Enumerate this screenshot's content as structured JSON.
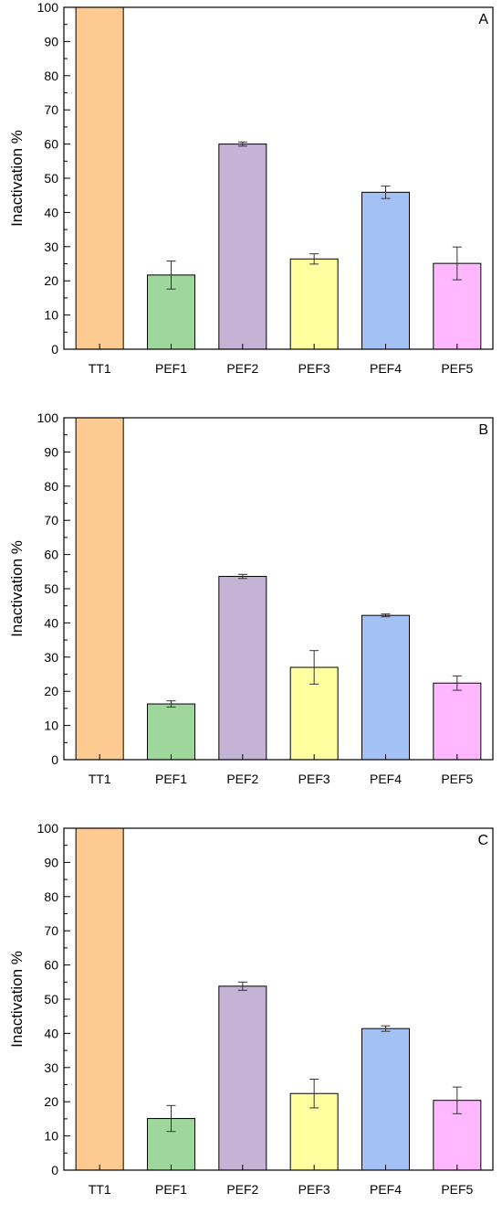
{
  "chart_data": [
    {
      "type": "bar",
      "panel_label": "A",
      "ylabel": "Inactivation %",
      "xlabel": "",
      "ylim": [
        0,
        100
      ],
      "yticks": [
        "0",
        "10",
        "20",
        "30",
        "40",
        "50",
        "60",
        "70",
        "80",
        "90",
        "100"
      ],
      "categories": [
        "TT1",
        "PEF1",
        "PEF2",
        "PEF3",
        "PEF4",
        "PEF5"
      ],
      "values": [
        100,
        21.7,
        60.0,
        26.4,
        45.9,
        25.1
      ],
      "errors": [
        0,
        4.1,
        0.6,
        1.5,
        1.8,
        4.8
      ],
      "colors": [
        "#FDCB92",
        "#9FD69B",
        "#C5B3D6",
        "#FFFFA0",
        "#A3C1F5",
        "#FFB8FF"
      ]
    },
    {
      "type": "bar",
      "panel_label": "B",
      "ylabel": "Inactivation %",
      "xlabel": "",
      "ylim": [
        0,
        100
      ],
      "yticks": [
        "0",
        "10",
        "20",
        "30",
        "40",
        "50",
        "60",
        "70",
        "80",
        "90",
        "100"
      ],
      "categories": [
        "TT1",
        "PEF1",
        "PEF2",
        "PEF3",
        "PEF4",
        "PEF5"
      ],
      "values": [
        100,
        16.3,
        53.6,
        27.0,
        42.2,
        22.4
      ],
      "errors": [
        0,
        0.9,
        0.6,
        4.9,
        0.4,
        2.1
      ],
      "colors": [
        "#FDCB92",
        "#9FD69B",
        "#C5B3D6",
        "#FFFFA0",
        "#A3C1F5",
        "#FFB8FF"
      ]
    },
    {
      "type": "bar",
      "panel_label": "C",
      "ylabel": "Inactivation %",
      "xlabel": "",
      "ylim": [
        0,
        100
      ],
      "yticks": [
        "0",
        "10",
        "20",
        "30",
        "40",
        "50",
        "60",
        "70",
        "80",
        "90",
        "100"
      ],
      "categories": [
        "TT1",
        "PEF1",
        "PEF2",
        "PEF3",
        "PEF4",
        "PEF5"
      ],
      "values": [
        100,
        15.1,
        53.8,
        22.4,
        41.4,
        20.4
      ],
      "errors": [
        0,
        3.8,
        1.2,
        4.2,
        0.8,
        3.9
      ],
      "colors": [
        "#FDCB92",
        "#9FD69B",
        "#C5B3D6",
        "#FFFFA0",
        "#A3C1F5",
        "#FFB8FF"
      ]
    }
  ]
}
